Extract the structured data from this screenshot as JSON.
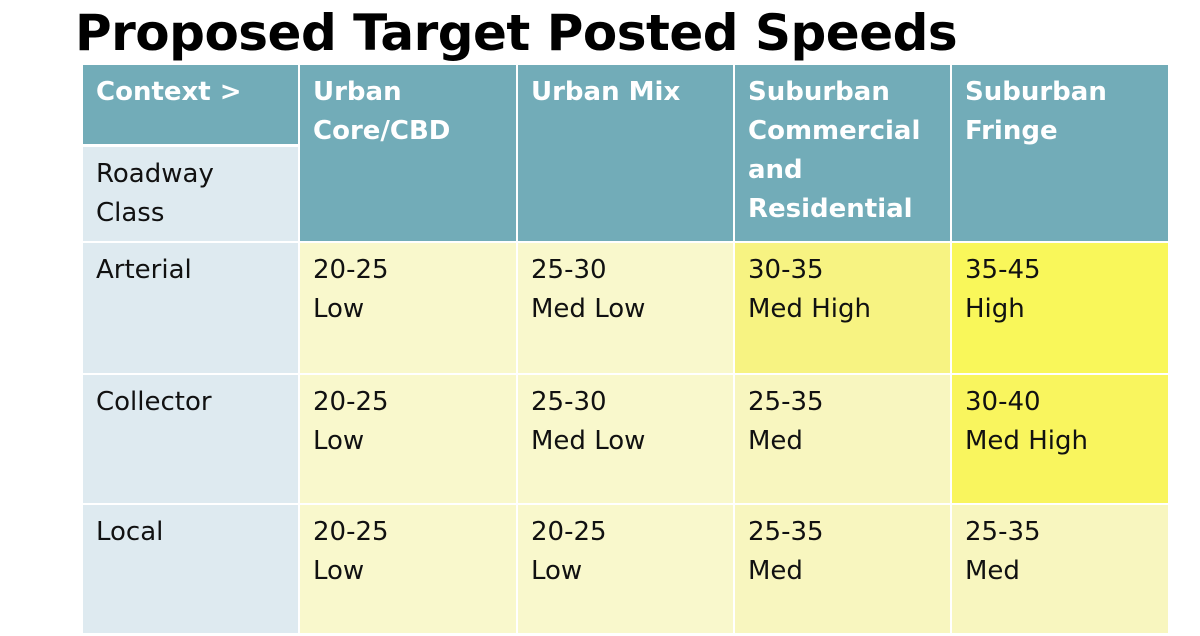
{
  "title": "Proposed Target Posted Speeds",
  "table": {
    "corner": [
      "Context >",
      "Roadway Class"
    ],
    "columns": [
      "Urban Core/CBD",
      "Urban Mix",
      "Suburban Commercial and Residential",
      "Suburban Fringe"
    ],
    "rows": [
      {
        "label": "Arterial",
        "cells": [
          [
            "20-25",
            "Low"
          ],
          [
            "25-30",
            "Med Low"
          ],
          [
            "30-35",
            "Med High"
          ],
          [
            "35-45",
            "High"
          ]
        ]
      },
      {
        "label": "Collector",
        "cells": [
          [
            "20-25",
            "Low"
          ],
          [
            "25-30",
            "Med Low"
          ],
          [
            "25-35",
            "Med"
          ],
          [
            "30-40",
            "Med High"
          ]
        ]
      },
      {
        "label": "Local",
        "cells": [
          [
            "20-25",
            "Low"
          ],
          [
            "20-25",
            "Low"
          ],
          [
            "25-35",
            "Med"
          ],
          [
            "25-35",
            "Med"
          ]
        ]
      }
    ]
  }
}
